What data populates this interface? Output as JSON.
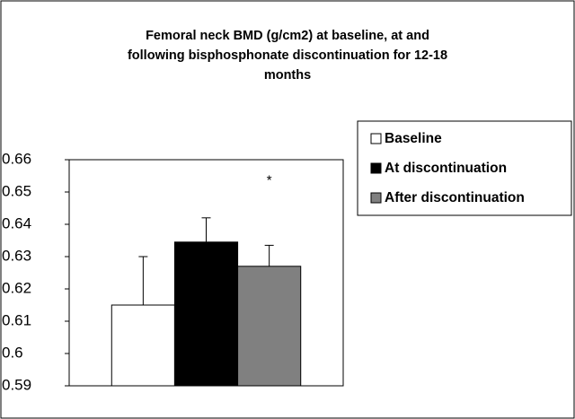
{
  "chart_data": {
    "type": "bar",
    "title": [
      "Femoral neck BMD (g/cm2) at baseline, at and",
      "following bisphosphonate discontinuation for 12-18",
      "months"
    ],
    "categories": [
      null
    ],
    "series": [
      {
        "name": "Baseline",
        "color": "#ffffff",
        "values": [
          0.615
        ],
        "errors": [
          0.015
        ]
      },
      {
        "name": "At discontinuation",
        "color": "#000000",
        "values": [
          0.6345
        ],
        "errors": [
          0.0075
        ]
      },
      {
        "name": "After discontinuation",
        "color": "#808080",
        "values": [
          0.627
        ],
        "errors": [
          0.0065
        ]
      }
    ],
    "annotations": [
      {
        "text": "*",
        "series": 2
      }
    ],
    "ylim": [
      0.59,
      0.66
    ],
    "yticks": [
      0.59,
      0.6,
      0.61,
      0.62,
      0.63,
      0.64,
      0.65,
      0.66
    ],
    "legend": "right"
  }
}
